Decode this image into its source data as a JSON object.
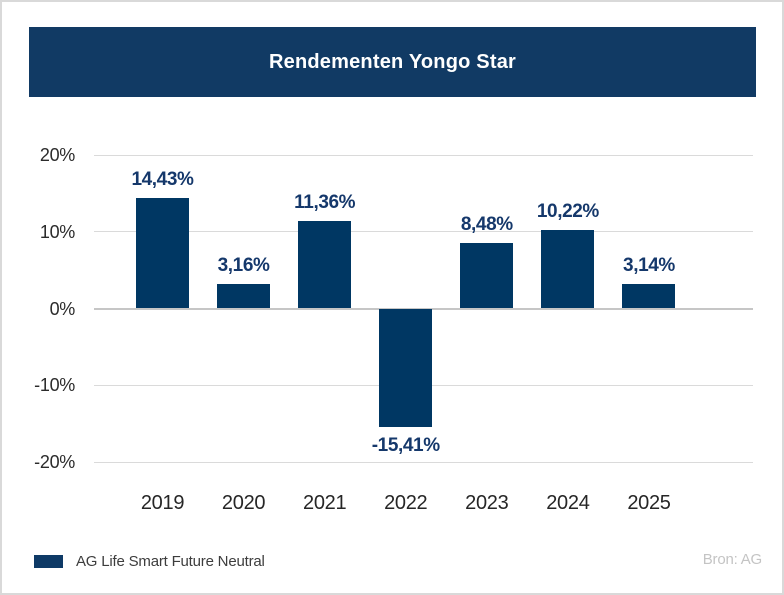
{
  "page": {
    "background": "#ffffff",
    "border_color": "#d9d9d9"
  },
  "header": {
    "title": "Rendementen Yongo Star",
    "background": "#113a64",
    "text_color": "#ffffff"
  },
  "chart_data": {
    "type": "bar",
    "title": "Rendementen Yongo Star",
    "categories": [
      "2019",
      "2020",
      "2021",
      "2022",
      "2023",
      "2024",
      "2025"
    ],
    "series": [
      {
        "name": "AG Life Smart Future Neutral",
        "values": [
          14.43,
          3.16,
          11.36,
          -15.41,
          8.48,
          10.22,
          3.14
        ]
      }
    ],
    "value_labels": [
      "14,43%",
      "3,16%",
      "11,36%",
      "-15,41%",
      "8,48%",
      "10,22%",
      "3,14%"
    ],
    "y_ticks": [
      20,
      10,
      0,
      -10,
      -20
    ],
    "y_tick_labels": [
      "20%",
      "10%",
      "0%",
      "-10%",
      "-20%"
    ],
    "ylim": [
      -20,
      20
    ],
    "xlabel": "",
    "ylabel": "",
    "grid": true,
    "legend_position": "bottom-left",
    "bar_color": "#003763",
    "label_color": "#15386b",
    "gridline_color": "#dadada",
    "zero_line_color": "#c6c6c6",
    "axis_text_color": "#2b2b2b"
  },
  "legend": {
    "swatch_color": "#0e3a66",
    "label": "AG Life Smart Future Neutral"
  },
  "source": {
    "label": "Bron: AG"
  }
}
